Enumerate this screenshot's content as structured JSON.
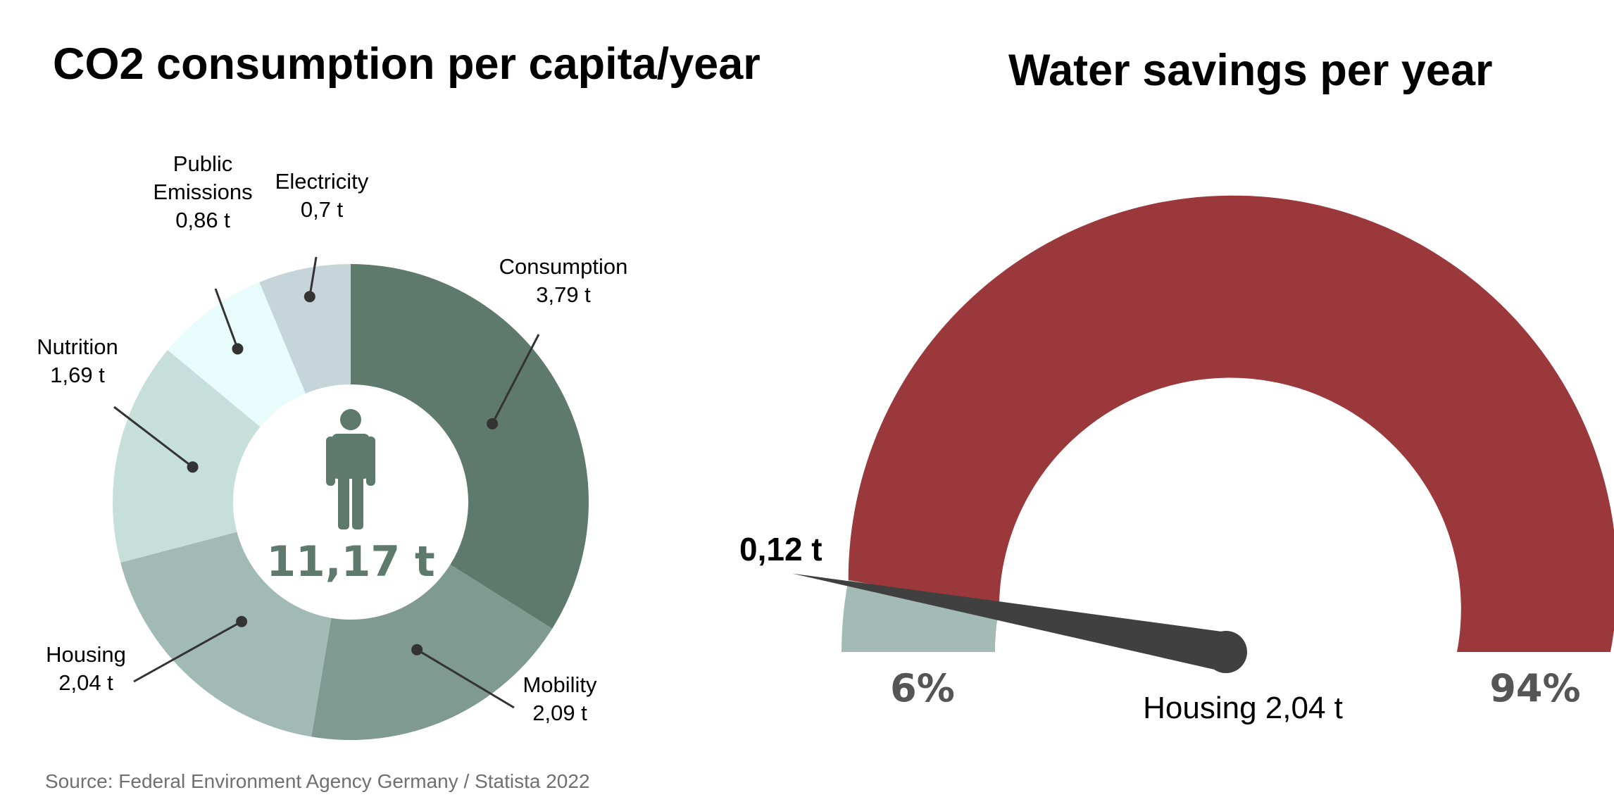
{
  "left_title": "CO2 consumption per capita/year",
  "right_title": "Water savings per year",
  "source": "Source: Federal Environment Agency Germany / Statista 2022",
  "colors": {
    "background": "#ffffff",
    "person_icon": "#5e7a6c",
    "total_text": "#5e7a6c",
    "leader_line": "#333333",
    "gauge_small": "#a3bab5",
    "gauge_large": "#9b383c",
    "needle": "#404040"
  },
  "icons": {
    "person": "person-icon"
  },
  "chart_data": [
    {
      "type": "pie",
      "donut": true,
      "title": "CO2 consumption per capita/year",
      "total_label": "11,17 t",
      "unit": "t",
      "slices": [
        {
          "name": "Consumption",
          "value": 3.79,
          "value_label": "3,79 t",
          "color": "#5e7a6c"
        },
        {
          "name": "Mobility",
          "value": 2.09,
          "value_label": "2,09 t",
          "color": "#7f9a91"
        },
        {
          "name": "Housing",
          "value": 2.04,
          "value_label": "2,04 t",
          "color": "#a2bab5"
        },
        {
          "name": "Nutrition",
          "value": 1.69,
          "value_label": "1,69 t",
          "color": "#c6dfdb"
        },
        {
          "name": "Public Emissions",
          "name_lines": [
            "Public",
            "Emissions"
          ],
          "value": 0.86,
          "value_label": "0,86 t",
          "color": "#e9fcfc"
        },
        {
          "name": "Electricity",
          "value": 0.7,
          "value_label": "0,7 t",
          "color": "#c5d5da"
        }
      ]
    },
    {
      "type": "gauge",
      "title": "Water savings per year",
      "segments": [
        {
          "name": "savings",
          "percent": 6,
          "percent_label": "6%",
          "color": "#a3bab5"
        },
        {
          "name": "remaining",
          "percent": 94,
          "percent_label": "94%",
          "color": "#9b383c"
        }
      ],
      "needle_value_label": "0,12 t",
      "needle_percent": 6,
      "base_label": "Housing 2,04 t"
    }
  ]
}
